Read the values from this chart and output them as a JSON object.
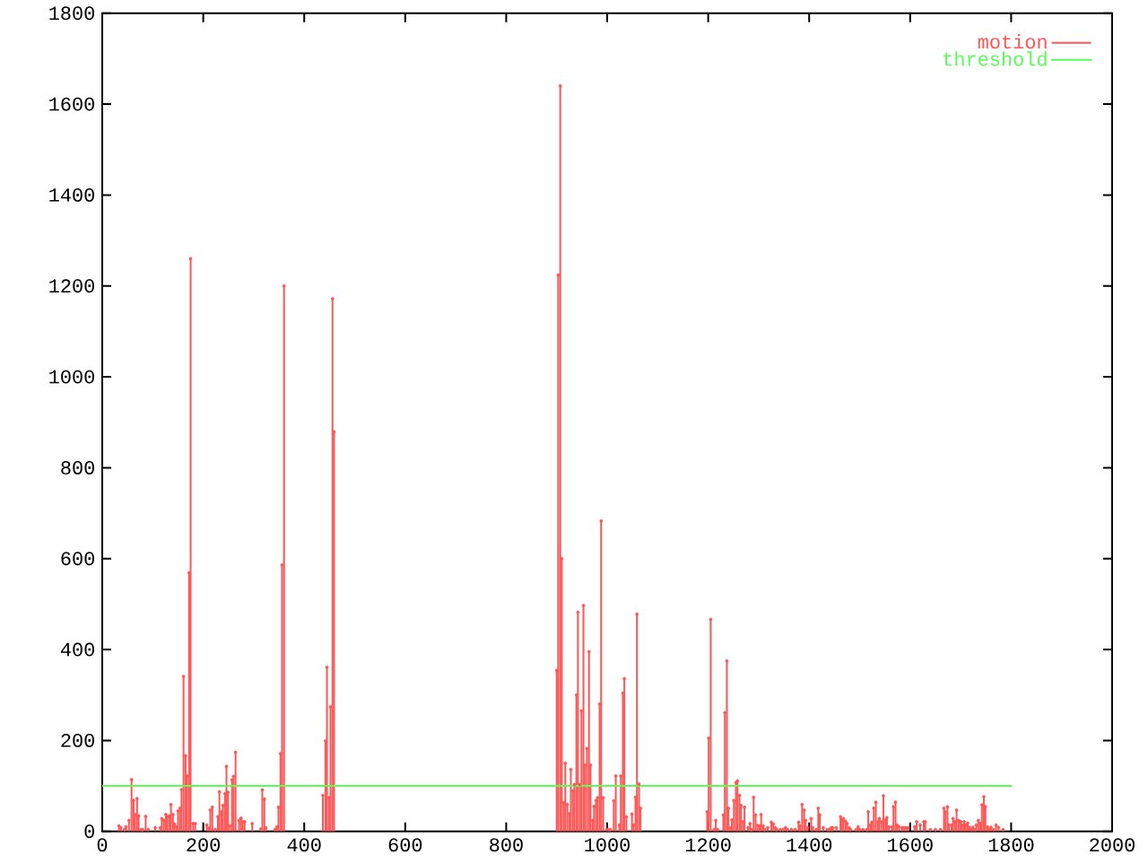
{
  "chart_data": {
    "type": "lollipop",
    "xlim": [
      0,
      2000
    ],
    "xticks": [
      0,
      200,
      400,
      600,
      800,
      1000,
      1200,
      1400,
      1600,
      1800,
      2000
    ],
    "ylim": [
      0,
      1800
    ],
    "yticks": [
      0,
      200,
      400,
      600,
      800,
      1000,
      1200,
      1400,
      1600,
      1800
    ],
    "legend": "top right",
    "series": [
      {
        "name": "motion",
        "color": "#ff5555",
        "x": [
          33,
          37,
          44,
          47,
          53,
          58,
          62,
          65,
          69,
          72,
          77,
          80,
          86,
          91,
          105,
          115,
          118,
          122,
          126,
          129,
          133,
          136,
          140,
          143,
          147,
          150,
          154,
          157,
          161,
          165,
          168,
          172,
          175,
          180,
          184,
          207,
          211,
          214,
          218,
          224,
          229,
          232,
          236,
          239,
          243,
          246,
          249,
          253,
          257,
          260,
          264,
          271,
          275,
          278,
          282,
          297,
          314,
          317,
          321,
          324,
          342,
          346,
          349,
          353,
          356,
          360,
          437,
          442,
          445,
          449,
          452,
          456,
          459,
          900,
          903,
          907,
          910,
          914,
          917,
          921,
          925,
          928,
          932,
          935,
          939,
          942,
          946,
          949,
          953,
          956,
          960,
          964,
          967,
          971,
          974,
          978,
          981,
          985,
          988,
          992,
          999,
          1003,
          1006,
          1013,
          1017,
          1024,
          1027,
          1031,
          1034,
          1038,
          1049,
          1052,
          1056,
          1059,
          1063,
          1066,
          1198,
          1201,
          1205,
          1212,
          1215,
          1219,
          1230,
          1233,
          1237,
          1240,
          1244,
          1247,
          1251,
          1255,
          1258,
          1262,
          1265,
          1269,
          1272,
          1279,
          1283,
          1286,
          1290,
          1294,
          1298,
          1302,
          1305,
          1309,
          1312,
          1318,
          1325,
          1329,
          1333,
          1336,
          1343,
          1348,
          1353,
          1357,
          1365,
          1372,
          1379,
          1382,
          1386,
          1390,
          1393,
          1397,
          1404,
          1407,
          1414,
          1418,
          1421,
          1428,
          1436,
          1440,
          1444,
          1447,
          1454,
          1462,
          1465,
          1468,
          1472,
          1475,
          1479,
          1482,
          1493,
          1497,
          1500,
          1507,
          1514,
          1517,
          1521,
          1524,
          1528,
          1532,
          1536,
          1539,
          1543,
          1547,
          1551,
          1554,
          1558,
          1564,
          1567,
          1571,
          1574,
          1578,
          1584,
          1588,
          1592,
          1596,
          1609,
          1613,
          1620,
          1627,
          1630,
          1640,
          1650,
          1660,
          1667,
          1670,
          1674,
          1677,
          1682,
          1685,
          1689,
          1692,
          1696,
          1700,
          1703,
          1707,
          1710,
          1714,
          1717,
          1721,
          1724,
          1728,
          1731,
          1735,
          1739,
          1742,
          1746,
          1749,
          1753,
          1756,
          1760,
          1765,
          1770,
          1775,
          1784
        ],
        "values": [
          12,
          8,
          4,
          10,
          24,
          114,
          68,
          37,
          72,
          34,
          4,
          4,
          33,
          4,
          8,
          8,
          28,
          24,
          37,
          32,
          34,
          59,
          37,
          16,
          10,
          45,
          51,
          92,
          341,
          166,
          122,
          569,
          1260,
          17,
          17,
          14,
          7,
          47,
          53,
          4,
          32,
          87,
          43,
          57,
          83,
          143,
          86,
          12,
          113,
          121,
          174,
          24,
          29,
          21,
          21,
          17,
          5,
          91,
          71,
          8,
          4,
          10,
          53,
          171,
          586,
          1200,
          79,
          199,
          361,
          74,
          274,
          1172,
          879,
          354,
          1224,
          1640,
          600,
          63,
          150,
          59,
          39,
          136,
          89,
          103,
          300,
          482,
          103,
          265,
          497,
          146,
          182,
          395,
          146,
          24,
          55,
          68,
          74,
          280,
          683,
          74,
          4,
          4,
          4,
          67,
          122,
          14,
          122,
          304,
          336,
          32,
          38,
          14,
          75,
          478,
          104,
          51,
          43,
          205,
          466,
          4,
          24,
          4,
          36,
          261,
          375,
          51,
          8,
          25,
          68,
          107,
          111,
          79,
          57,
          21,
          53,
          8,
          17,
          4,
          75,
          36,
          13,
          12,
          37,
          12,
          4,
          8,
          20,
          16,
          8,
          4,
          4,
          4,
          8,
          4,
          4,
          4,
          20,
          12,
          59,
          47,
          24,
          8,
          28,
          8,
          4,
          51,
          36,
          8,
          4,
          4,
          8,
          8,
          8,
          32,
          25,
          28,
          22,
          17,
          8,
          4,
          4,
          10,
          4,
          4,
          4,
          43,
          14,
          20,
          51,
          64,
          21,
          28,
          21,
          78,
          25,
          30,
          10,
          10,
          54,
          64,
          14,
          10,
          8,
          8,
          8,
          8,
          10,
          21,
          14,
          21,
          21,
          4,
          4,
          4,
          51,
          43,
          54,
          14,
          14,
          28,
          21,
          47,
          24,
          21,
          14,
          21,
          14,
          18,
          9,
          4,
          9,
          4,
          14,
          24,
          17,
          58,
          76,
          54,
          10,
          4,
          9,
          4,
          14,
          9,
          4
        ]
      },
      {
        "name": "threshold",
        "type": "line",
        "color": "#55ff55",
        "x": [
          0,
          1800
        ],
        "values": [
          100,
          100
        ]
      }
    ]
  }
}
